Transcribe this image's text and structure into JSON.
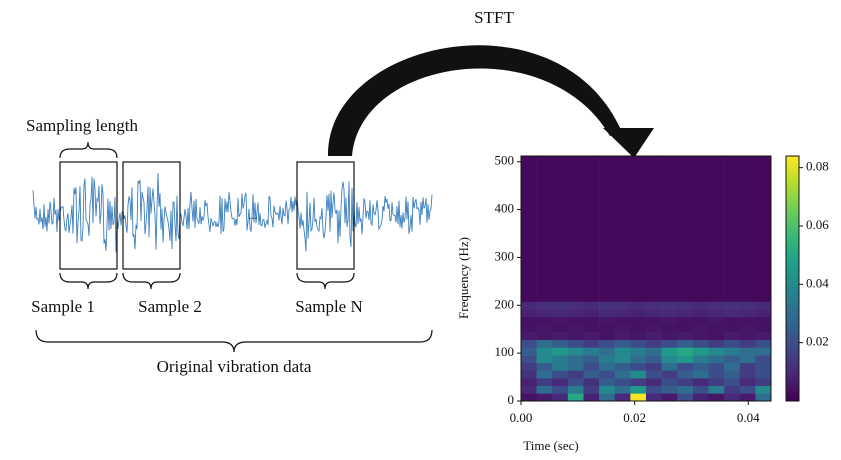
{
  "diagram": {
    "sampling_length": "Sampling length",
    "sample_1": "Sample 1",
    "sample_2": "Sample 2",
    "sample_n": "Sample N",
    "ellipsis": "...",
    "original": "Original vibration data",
    "transform": "STFT"
  },
  "chart_data": {
    "type": "heatmap",
    "xlabel": "Time (sec)",
    "ylabel": "Frequency (Hz)",
    "xlim": [
      0,
      0.044
    ],
    "ylim": [
      0,
      512
    ],
    "xticks": [
      {
        "value": 0,
        "label": "0.00"
      },
      0.02,
      0.04
    ],
    "yticks": [
      0,
      100,
      200,
      300,
      400,
      500
    ],
    "xbins": [
      0,
      0.00275,
      0.0055,
      0.00825,
      0.011,
      0.01375,
      0.0165,
      0.01925,
      0.022,
      0.02475,
      0.0275,
      0.03025,
      0.033,
      0.03575,
      0.0385,
      0.04125,
      0.044
    ],
    "ybins": [
      0,
      16,
      32,
      48,
      64,
      80,
      96,
      112,
      128,
      144,
      160,
      176,
      192,
      208,
      512
    ],
    "z": [
      [
        0.004,
        0.006,
        0.01,
        0.05,
        0.008,
        0.03,
        0.01,
        0.083,
        0.01,
        0.006,
        0.02,
        0.008,
        0.005,
        0.01,
        0.006,
        0.03
      ],
      [
        0.01,
        0.03,
        0.02,
        0.035,
        0.015,
        0.04,
        0.03,
        0.045,
        0.02,
        0.025,
        0.03,
        0.02,
        0.035,
        0.015,
        0.02,
        0.04
      ],
      [
        0.008,
        0.015,
        0.01,
        0.02,
        0.012,
        0.025,
        0.02,
        0.015,
        0.01,
        0.02,
        0.015,
        0.01,
        0.015,
        0.02,
        0.01,
        0.015
      ],
      [
        0.012,
        0.03,
        0.02,
        0.015,
        0.025,
        0.02,
        0.03,
        0.04,
        0.02,
        0.015,
        0.025,
        0.03,
        0.02,
        0.025,
        0.015,
        0.02
      ],
      [
        0.015,
        0.025,
        0.035,
        0.03,
        0.02,
        0.03,
        0.025,
        0.02,
        0.015,
        0.03,
        0.02,
        0.025,
        0.02,
        0.03,
        0.015,
        0.02
      ],
      [
        0.02,
        0.04,
        0.035,
        0.03,
        0.025,
        0.035,
        0.04,
        0.03,
        0.025,
        0.04,
        0.045,
        0.035,
        0.03,
        0.025,
        0.03,
        0.02
      ],
      [
        0.025,
        0.04,
        0.045,
        0.04,
        0.035,
        0.03,
        0.04,
        0.035,
        0.03,
        0.045,
        0.05,
        0.045,
        0.04,
        0.035,
        0.03,
        0.03
      ],
      [
        0.02,
        0.03,
        0.025,
        0.02,
        0.015,
        0.02,
        0.025,
        0.02,
        0.015,
        0.02,
        0.025,
        0.02,
        0.015,
        0.02,
        0.015,
        0.02
      ],
      [
        0.006,
        0.005,
        0.007,
        0.005,
        0.006,
        0.004,
        0.006,
        0.005,
        0.007,
        0.005,
        0.006,
        0.005,
        0.004,
        0.006,
        0.005,
        0.006
      ],
      [
        0.004,
        0.005,
        0.004,
        0.005,
        0.004,
        0.004,
        0.005,
        0.004,
        0.005,
        0.004,
        0.004,
        0.005,
        0.004,
        0.004,
        0.005,
        0.004
      ],
      [
        0.004,
        0.004,
        0.005,
        0.004,
        0.004,
        0.005,
        0.004,
        0.004,
        0.004,
        0.005,
        0.004,
        0.004,
        0.005,
        0.004,
        0.004,
        0.004
      ],
      [
        0.008,
        0.009,
        0.01,
        0.009,
        0.008,
        0.01,
        0.009,
        0.008,
        0.009,
        0.01,
        0.009,
        0.008,
        0.009,
        0.01,
        0.009,
        0.008
      ],
      [
        0.01,
        0.011,
        0.012,
        0.011,
        0.01,
        0.012,
        0.011,
        0.01,
        0.011,
        0.012,
        0.011,
        0.01,
        0.011,
        0.012,
        0.011,
        0.01
      ],
      [
        0.002,
        0.002,
        0.002,
        0.002,
        0.002,
        0.002,
        0.002,
        0.002,
        0.002,
        0.002,
        0.002,
        0.002,
        0.002,
        0.002,
        0.002,
        0.002
      ]
    ],
    "zlim": [
      0,
      0.084
    ],
    "zticks": [
      0.02,
      0.04,
      0.06,
      0.08
    ],
    "colormap": "viridis"
  }
}
